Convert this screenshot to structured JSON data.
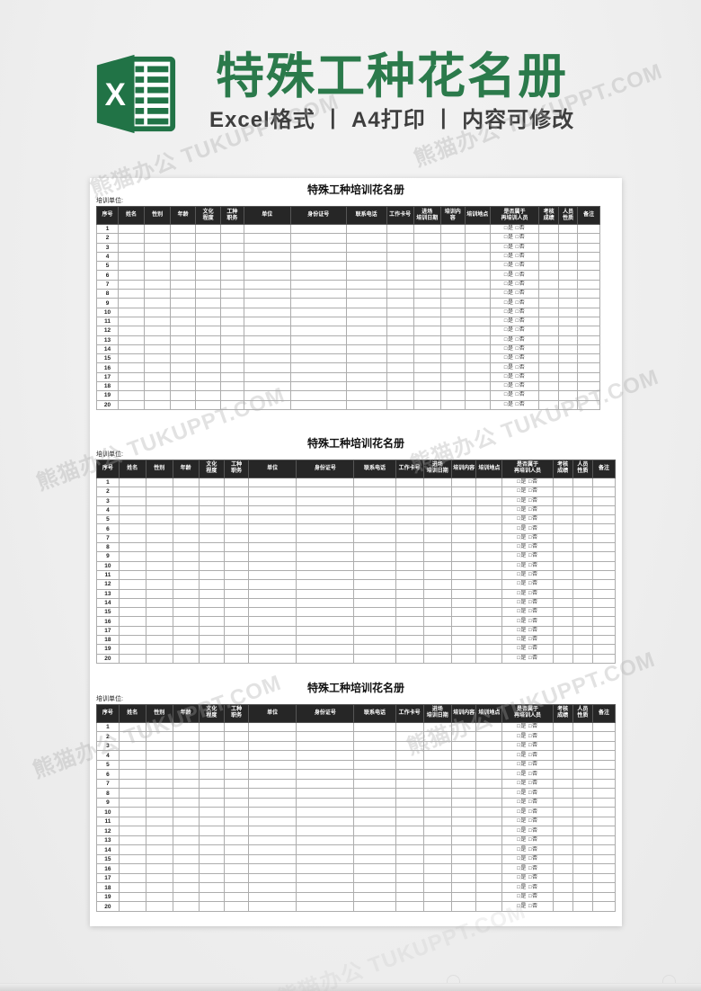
{
  "banner": {
    "title": "特殊工种花名册",
    "subtitle": "Excel格式 丨 A4打印 丨 内容可修改",
    "logo_letter": "X",
    "colors": {
      "excel_green": "#217346",
      "title_green": "#2b7a4b",
      "subtitle_gray": "#3e3e3e"
    }
  },
  "watermark_text": "熊猫办公 TUKUPPT.COM",
  "sheet": {
    "section_title": "特殊工种培训花名册",
    "unit_label": "培训单位:",
    "sections": 3,
    "rows_per_section": 20,
    "retrain_cell": "□是 □否",
    "header_bg": "#262626",
    "columns": [
      {
        "key": "xuhao",
        "lines": [
          "序号"
        ],
        "w": 4.3
      },
      {
        "key": "xingming",
        "lines": [
          "姓名"
        ],
        "w": 5.2
      },
      {
        "key": "xingbie",
        "lines": [
          "性别"
        ],
        "w": 5.2
      },
      {
        "key": "nianling",
        "lines": [
          "年龄"
        ],
        "w": 5.0
      },
      {
        "key": "wenhua-chengdu",
        "lines": [
          "文化",
          "程度"
        ],
        "w": 5.0
      },
      {
        "key": "gongzhong-zhiwu",
        "lines": [
          "工种",
          "职务"
        ],
        "w": 4.6
      },
      {
        "key": "danwei",
        "lines": [
          "单位"
        ],
        "w": 9.3
      },
      {
        "key": "shenfenzheng-hao",
        "lines": [
          "身份证号"
        ],
        "w": 11.1
      },
      {
        "key": "lianxi-dianhua",
        "lines": [
          "联系电话"
        ],
        "w": 8.0
      },
      {
        "key": "gongzuo-kahao",
        "lines": [
          "工作卡号"
        ],
        "w": 5.4
      },
      {
        "key": "jinchang-peixun-riqi",
        "lines": [
          "进场",
          "培训日期"
        ],
        "w": 5.4
      },
      {
        "key": "peixun-neirong",
        "lines": [
          "培训内容"
        ],
        "w": 4.8
      },
      {
        "key": "peixun-didian",
        "lines": [
          "培训地点"
        ],
        "w": 5.0
      },
      {
        "key": "shifou-zai-peixun",
        "lines": [
          "是否属于",
          "再培训人员"
        ],
        "w": 9.8
      },
      {
        "key": "kaohe-chengji",
        "lines": [
          "考核",
          "成绩"
        ],
        "w": 3.8
      },
      {
        "key": "renyuan-xingzhi",
        "lines": [
          "人员",
          "性质"
        ],
        "w": 3.9
      },
      {
        "key": "beizhu",
        "lines": [
          "备注"
        ],
        "w": 4.3
      }
    ]
  }
}
